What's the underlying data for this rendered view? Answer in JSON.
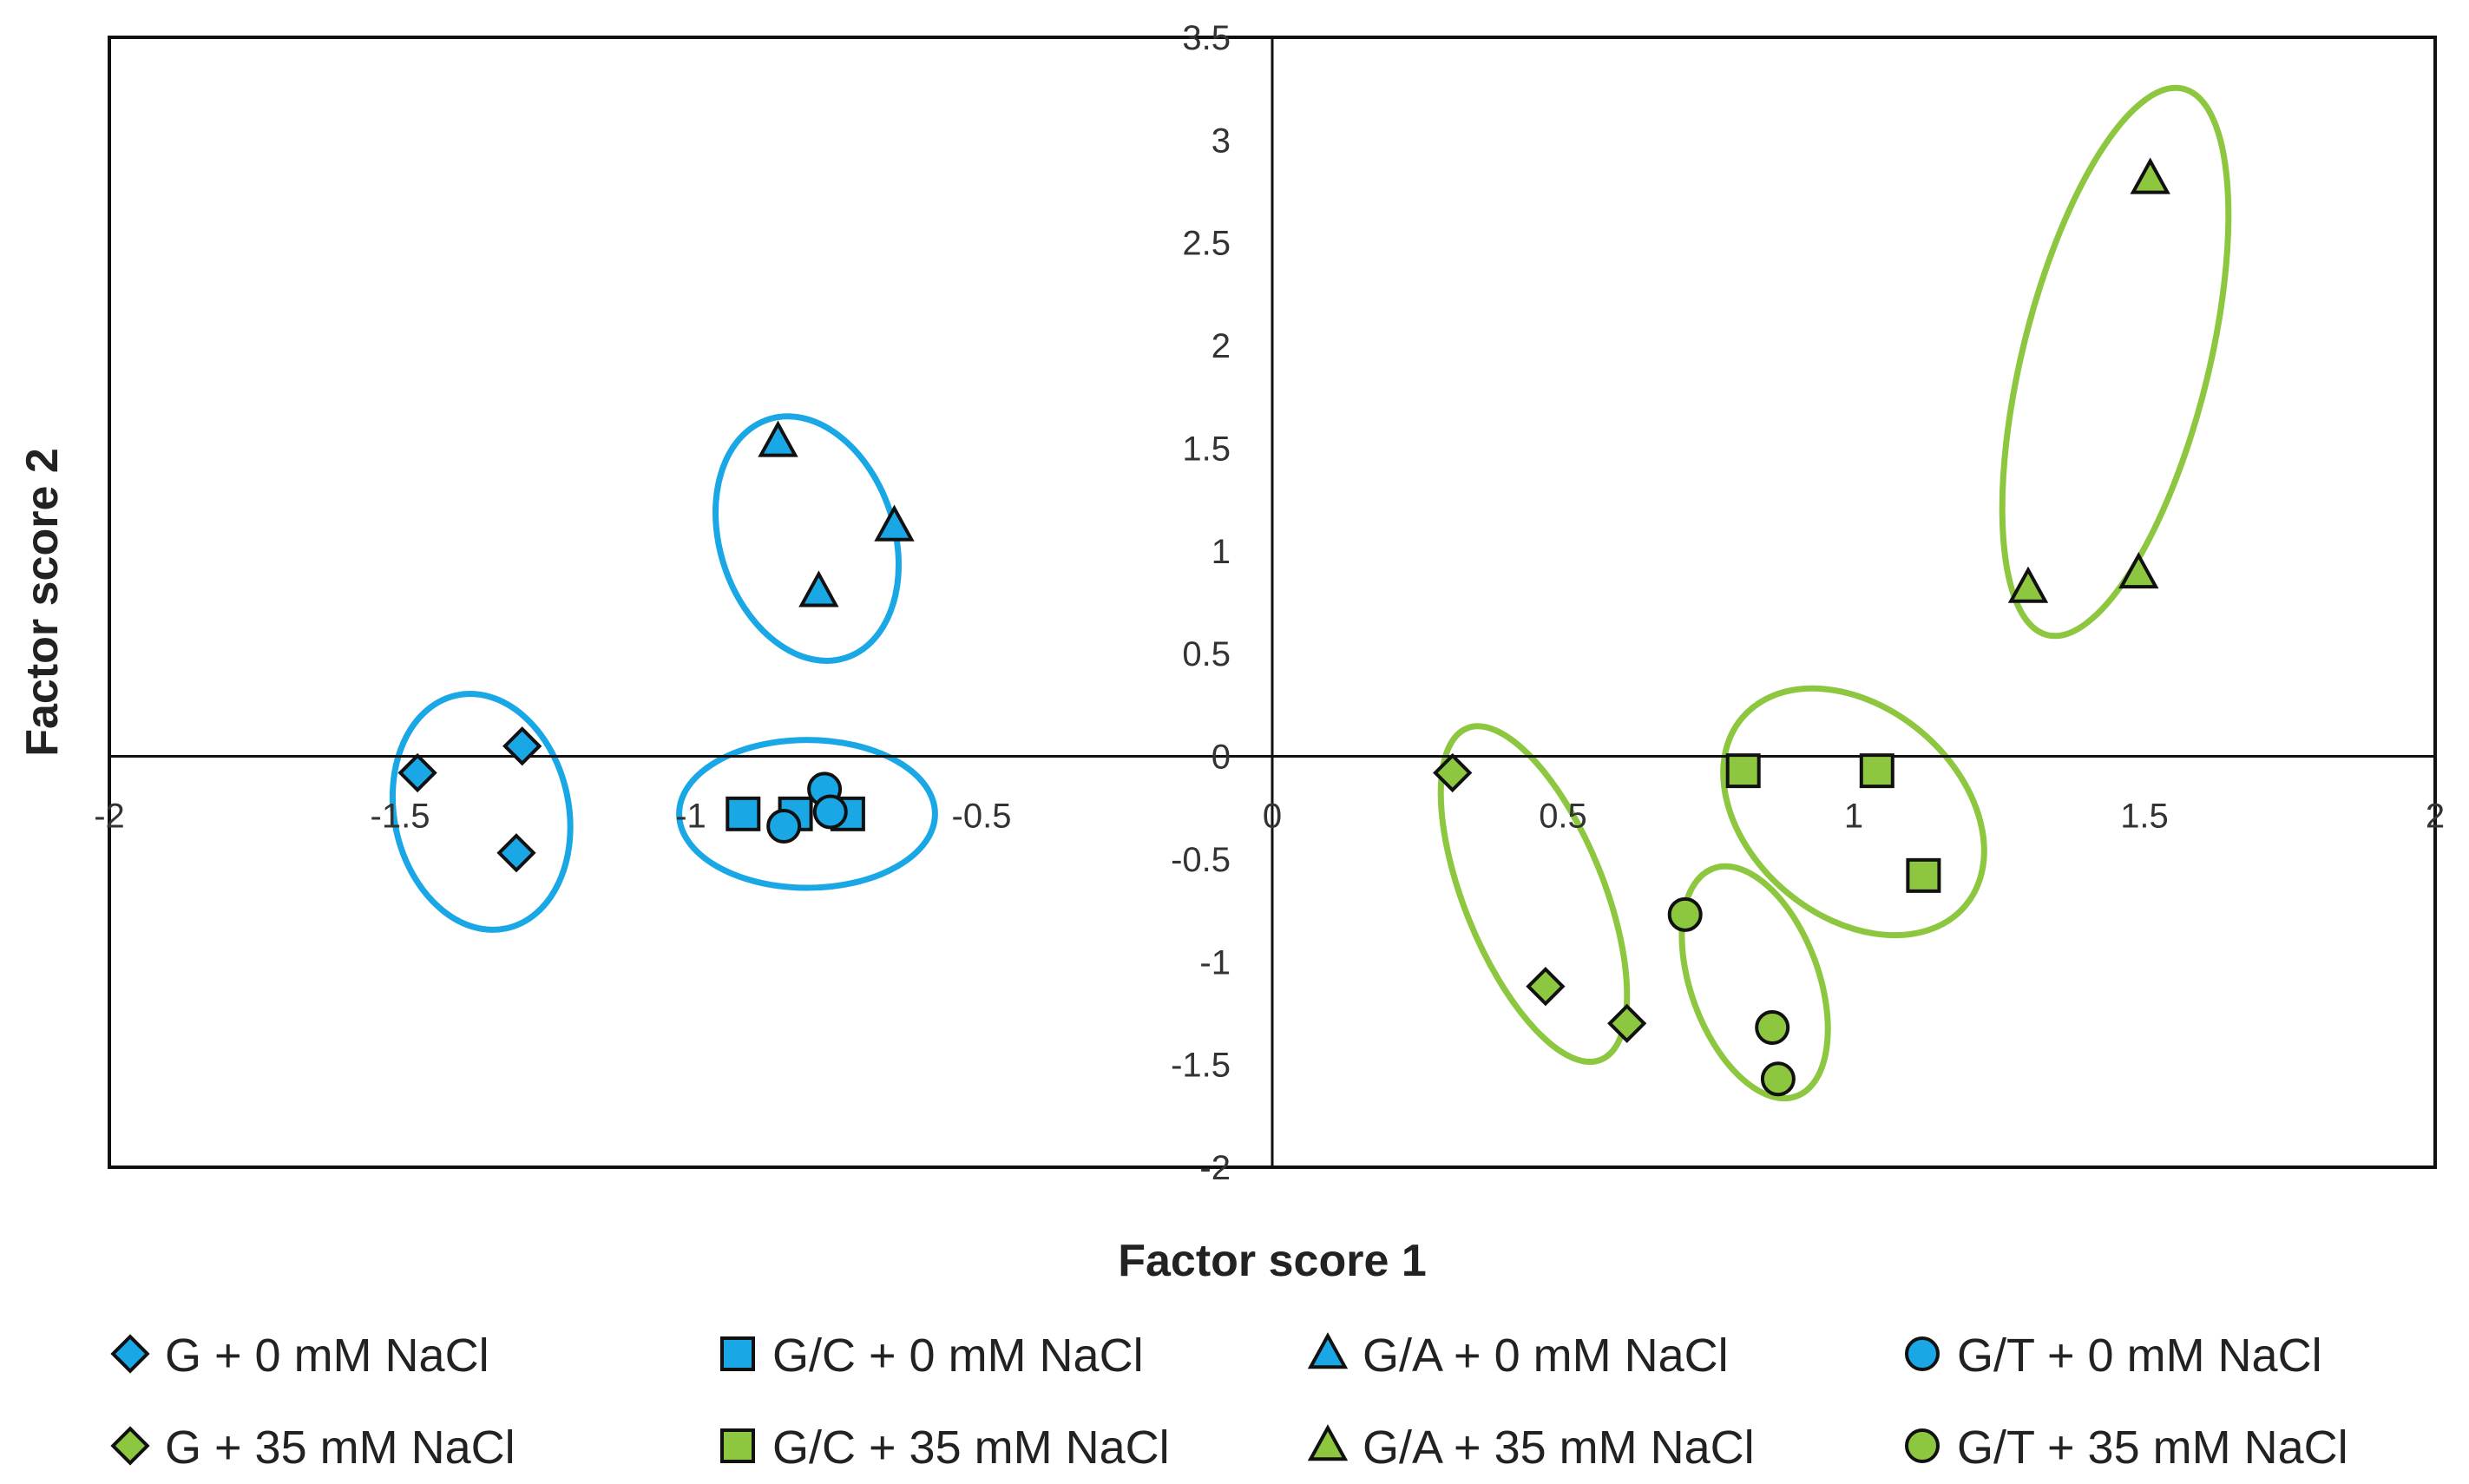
{
  "chart_data": {
    "type": "scatter",
    "xlabel": "Factor score 1",
    "ylabel": "Factor score 2",
    "xlim": [
      -2,
      2
    ],
    "ylim": [
      -2,
      3.5
    ],
    "xticks": [
      -2,
      -1.5,
      -1,
      -0.5,
      0,
      0.5,
      1,
      1.5,
      2
    ],
    "yticks": [
      -2,
      -1.5,
      -1,
      -0.5,
      0,
      0.5,
      1,
      1.5,
      2,
      2.5,
      3,
      3.5
    ],
    "grid": false,
    "legend_position": "bottom",
    "colors": {
      "blue": "#1AA7E6",
      "green": "#8DC63F",
      "outline": "#111111"
    },
    "series": [
      {
        "name": "G + 0 mM NaCl",
        "marker": "diamond",
        "color": "#1AA7E6",
        "points": [
          [
            -1.47,
            -0.08
          ],
          [
            -1.29,
            0.05
          ],
          [
            -1.3,
            -0.47
          ]
        ]
      },
      {
        "name": "G/C + 0 mM NaCl",
        "marker": "square",
        "color": "#1AA7E6",
        "points": [
          [
            -0.91,
            -0.28
          ],
          [
            -0.82,
            -0.28
          ],
          [
            -0.73,
            -0.28
          ]
        ]
      },
      {
        "name": "G/A + 0 mM NaCl",
        "marker": "triangle",
        "color": "#1AA7E6",
        "points": [
          [
            -0.85,
            1.53
          ],
          [
            -0.65,
            1.12
          ],
          [
            -0.78,
            0.8
          ]
        ]
      },
      {
        "name": "G/T + 0 mM NaCl",
        "marker": "circle",
        "color": "#1AA7E6",
        "points": [
          [
            -0.84,
            -0.34
          ],
          [
            -0.77,
            -0.16
          ],
          [
            -0.76,
            -0.27
          ]
        ]
      },
      {
        "name": "G + 35 mM NaCl",
        "marker": "diamond",
        "color": "#8DC63F",
        "points": [
          [
            0.31,
            -0.08
          ],
          [
            0.47,
            -1.12
          ],
          [
            0.61,
            -1.3
          ]
        ]
      },
      {
        "name": "G/C + 35 mM NaCl",
        "marker": "square",
        "color": "#8DC63F",
        "points": [
          [
            0.81,
            -0.07
          ],
          [
            1.04,
            -0.07
          ],
          [
            1.12,
            -0.58
          ]
        ]
      },
      {
        "name": "G/A + 35 mM NaCl",
        "marker": "triangle",
        "color": "#8DC63F",
        "points": [
          [
            1.51,
            2.81
          ],
          [
            1.3,
            0.82
          ],
          [
            1.49,
            0.89
          ]
        ]
      },
      {
        "name": "G/T + 35 mM NaCl",
        "marker": "circle",
        "color": "#8DC63F",
        "points": [
          [
            0.71,
            -0.77
          ],
          [
            0.86,
            -1.32
          ],
          [
            0.87,
            -1.57
          ]
        ]
      }
    ],
    "cluster_ellipses": [
      {
        "color": "#1AA7E6",
        "center": [
          -1.36,
          -0.27
        ],
        "rx": 0.15,
        "ry": 0.58,
        "rotate": -12
      },
      {
        "color": "#1AA7E6",
        "center": [
          -0.8,
          1.06
        ],
        "rx": 0.15,
        "ry": 0.61,
        "rotate": -18
      },
      {
        "color": "#1AA7E6",
        "center": [
          -0.8,
          -0.28
        ],
        "rx": 0.22,
        "ry": 0.36,
        "rotate": 0
      },
      {
        "color": "#8DC63F",
        "center": [
          0.45,
          -0.67
        ],
        "rx": 0.12,
        "ry": 0.87,
        "rotate": -22
      },
      {
        "color": "#8DC63F",
        "center": [
          0.83,
          -1.1
        ],
        "rx": 0.11,
        "ry": 0.59,
        "rotate": -20
      },
      {
        "color": "#8DC63F",
        "center": [
          1.0,
          -0.27
        ],
        "rx": 0.18,
        "ry": 0.71,
        "rotate": -50
      },
      {
        "color": "#8DC63F",
        "center": [
          1.45,
          1.92
        ],
        "rx": 0.16,
        "ry": 1.37,
        "rotate": 14
      }
    ]
  }
}
